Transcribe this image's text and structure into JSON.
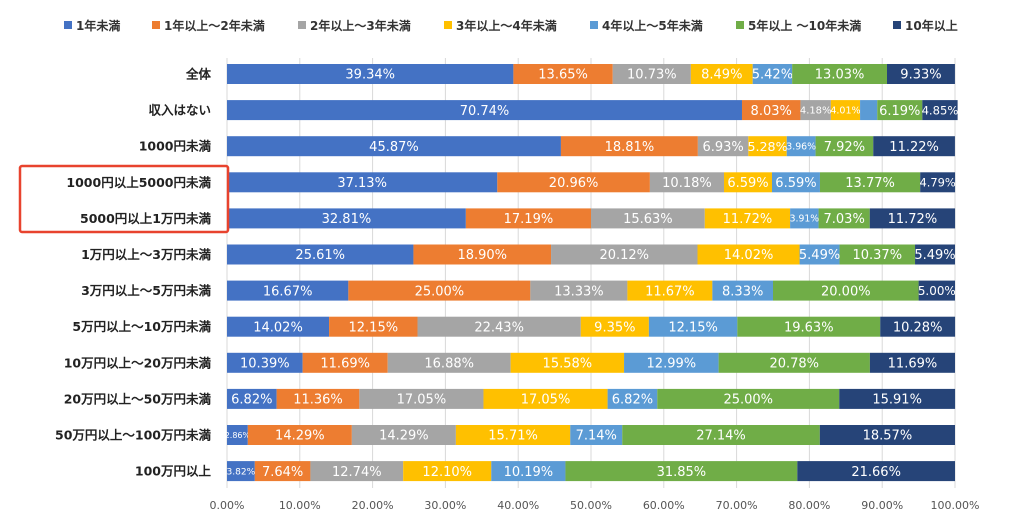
{
  "chart_data": {
    "type": "bar",
    "orientation": "horizontal",
    "stacked": "percent",
    "categories": [
      "全体",
      "収入はない",
      "1000円未満",
      "1000円以上5000円未満",
      "5000円以上1万円未満",
      "1万円以上～3万円未満",
      "3万円以上～5万円未満",
      "5万円以上～10万円未満",
      "10万円以上～20万円未満",
      "20万円以上～50万円未満",
      "50万円以上～100万円未満",
      "100万円以上"
    ],
    "series": [
      {
        "name": "1年未満",
        "color": "#4472C4",
        "values": [
          39.34,
          70.74,
          45.87,
          37.13,
          32.81,
          25.61,
          16.67,
          14.02,
          10.39,
          6.82,
          2.86,
          3.82
        ]
      },
      {
        "name": "1年以上～2年未満",
        "color": "#ED7D31",
        "values": [
          13.65,
          8.03,
          18.81,
          20.96,
          17.19,
          18.9,
          25.0,
          12.15,
          11.69,
          11.36,
          14.29,
          7.64
        ]
      },
      {
        "name": "2年以上～3年未満",
        "color": "#A5A5A5",
        "values": [
          10.73,
          4.18,
          6.93,
          10.18,
          15.63,
          20.12,
          13.33,
          22.43,
          16.88,
          17.05,
          14.29,
          12.74
        ]
      },
      {
        "name": "3年以上～4年未満",
        "color": "#FFC000",
        "values": [
          8.49,
          4.01,
          5.28,
          6.59,
          11.72,
          14.02,
          11.67,
          9.35,
          15.58,
          17.05,
          15.71,
          12.1
        ]
      },
      {
        "name": "4年以上～5年未満",
        "color": "#5B9BD5",
        "values": [
          5.42,
          2.36,
          3.96,
          6.59,
          3.91,
          5.49,
          8.33,
          12.15,
          12.99,
          6.82,
          7.14,
          10.19
        ]
      },
      {
        "name": "5年以上 ～10年未満",
        "color": "#70AD47",
        "values": [
          13.03,
          6.19,
          7.92,
          13.77,
          7.03,
          10.37,
          20.0,
          19.63,
          20.78,
          25.0,
          27.14,
          31.85
        ]
      },
      {
        "name": "10年以上",
        "color": "#264478",
        "values": [
          9.33,
          4.85,
          11.22,
          4.79,
          11.72,
          5.49,
          5.0,
          10.28,
          11.69,
          15.91,
          18.57,
          21.66
        ]
      }
    ],
    "data_labels": [
      [
        "39.34%",
        "13.65%",
        "10.73%",
        "8.49%",
        "5.42%",
        "13.03%",
        "9.33%"
      ],
      [
        "70.74%",
        "8.03%",
        "4.18%",
        "4.01%",
        "",
        "6.19%",
        "4.85%"
      ],
      [
        "45.87%",
        "18.81%",
        "6.93%",
        "5.28%",
        "3.96%",
        "7.92%",
        "11.22%"
      ],
      [
        "37.13%",
        "20.96%",
        "10.18%",
        "6.59%",
        "6.59%",
        "13.77%",
        "4.79%"
      ],
      [
        "32.81%",
        "17.19%",
        "15.63%",
        "11.72%",
        "3.91%",
        "7.03%",
        "11.72%"
      ],
      [
        "25.61%",
        "18.90%",
        "20.12%",
        "14.02%",
        "5.49%",
        "10.37%",
        "5.49%"
      ],
      [
        "16.67%",
        "25.00%",
        "13.33%",
        "11.67%",
        "8.33%",
        "20.00%",
        "5.00%"
      ],
      [
        "14.02%",
        "12.15%",
        "22.43%",
        "9.35%",
        "12.15%",
        "19.63%",
        "10.28%"
      ],
      [
        "10.39%",
        "11.69%",
        "16.88%",
        "15.58%",
        "12.99%",
        "20.78%",
        "11.69%"
      ],
      [
        "6.82%",
        "11.36%",
        "17.05%",
        "17.05%",
        "6.82%",
        "25.00%",
        "15.91%"
      ],
      [
        "2.86%",
        "14.29%",
        "14.29%",
        "15.71%",
        "7.14%",
        "27.14%",
        "18.57%"
      ],
      [
        "3.82%",
        "7.64%",
        "12.74%",
        "12.10%",
        "10.19%",
        "31.85%",
        "21.66%"
      ]
    ],
    "x_ticks": [
      "0.00%",
      "10.00%",
      "20.00%",
      "30.00%",
      "40.00%",
      "50.00%",
      "60.00%",
      "70.00%",
      "80.00%",
      "90.00%",
      "100.00%"
    ],
    "xlim": [
      0,
      100
    ],
    "grid": true,
    "legend_position": "top",
    "highlight": {
      "categories": [
        "1000円以上5000円未満",
        "5000円以上1万円未満"
      ],
      "color": "#E8432E"
    }
  }
}
